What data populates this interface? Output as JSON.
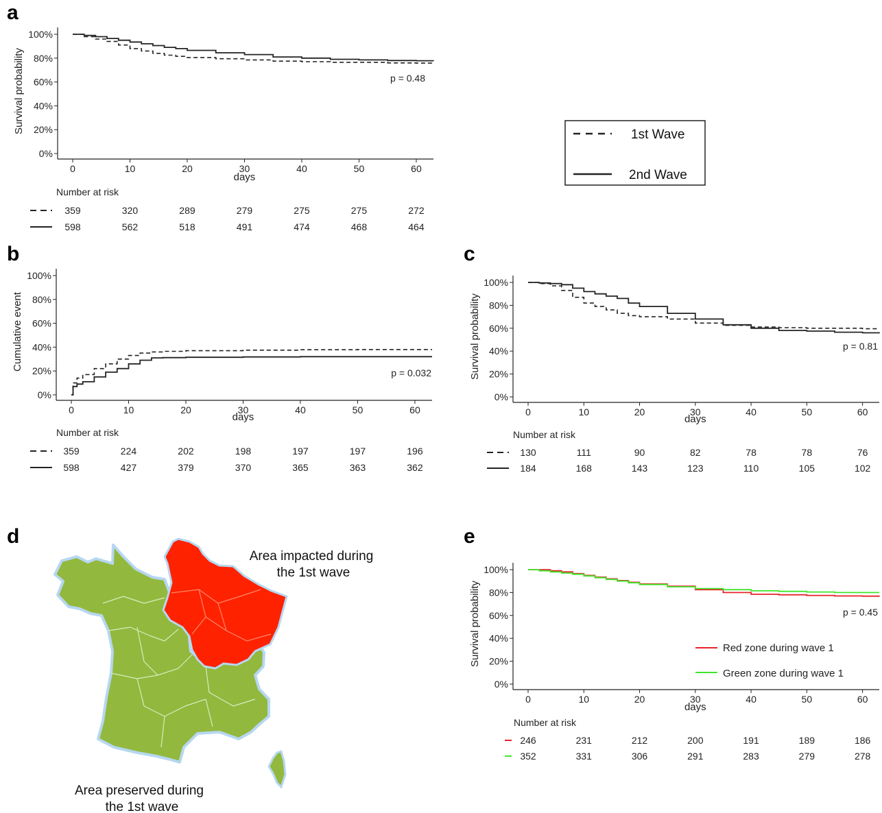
{
  "panels": {
    "a": "a",
    "b": "b",
    "c": "c",
    "d": "d",
    "e": "e"
  },
  "legend": {
    "wave1": "1st Wave",
    "wave2": "2nd Wave"
  },
  "map": {
    "label_impacted_line1": "Area impacted during",
    "label_impacted_line2": "the 1st wave",
    "label_preserved_line1": "Area preserved during",
    "label_preserved_line2": "the 1st wave",
    "colors": {
      "impacted": "#ff2200",
      "preserved": "#93b83e"
    }
  },
  "chart_data": [
    {
      "panel": "a",
      "type": "line",
      "xlabel": "days",
      "ylabel": "Survival probability",
      "xticks": [
        "0",
        "10",
        "20",
        "30",
        "40",
        "50",
        "60"
      ],
      "yticks": [
        "0%",
        "20%",
        "40%",
        "60%",
        "80%",
        "100%"
      ],
      "xlim": [
        0,
        63
      ],
      "ylim": [
        0,
        1
      ],
      "pvalue": "p = 0.48",
      "risk_title": "Number at risk",
      "series": [
        {
          "name": "1st Wave",
          "style": "dashed",
          "color": "#222222",
          "x": [
            0,
            2,
            4,
            6,
            8,
            10,
            12,
            14,
            16,
            18,
            20,
            25,
            30,
            35,
            40,
            45,
            50,
            55,
            60,
            63
          ],
          "y": [
            1.0,
            0.98,
            0.96,
            0.94,
            0.91,
            0.88,
            0.86,
            0.84,
            0.825,
            0.815,
            0.805,
            0.795,
            0.785,
            0.775,
            0.77,
            0.765,
            0.765,
            0.76,
            0.758,
            0.757
          ],
          "risk": [
            "359",
            "320",
            "289",
            "279",
            "275",
            "275",
            "272"
          ]
        },
        {
          "name": "2nd Wave",
          "style": "solid",
          "color": "#222222",
          "x": [
            0,
            2,
            4,
            6,
            8,
            10,
            12,
            14,
            16,
            18,
            20,
            25,
            30,
            35,
            40,
            45,
            50,
            55,
            60,
            63
          ],
          "y": [
            1.0,
            0.99,
            0.98,
            0.965,
            0.95,
            0.935,
            0.92,
            0.905,
            0.89,
            0.88,
            0.865,
            0.845,
            0.83,
            0.81,
            0.8,
            0.79,
            0.785,
            0.78,
            0.778,
            0.777
          ],
          "risk": [
            "598",
            "562",
            "518",
            "491",
            "474",
            "468",
            "464"
          ]
        }
      ]
    },
    {
      "panel": "b",
      "type": "line",
      "xlabel": "days",
      "ylabel": "Cumulative event",
      "xticks": [
        "0",
        "10",
        "20",
        "30",
        "40",
        "50",
        "60"
      ],
      "yticks": [
        "0%",
        "20%",
        "40%",
        "60%",
        "80%",
        "100%"
      ],
      "xlim": [
        0,
        63
      ],
      "ylim": [
        0,
        1
      ],
      "pvalue": "p = 0.032",
      "risk_title": "Number at risk",
      "series": [
        {
          "name": "1st Wave",
          "style": "dashed",
          "color": "#222222",
          "x": [
            0,
            0.3,
            1,
            2,
            4,
            6,
            8,
            10,
            12,
            14,
            16,
            20,
            30,
            40,
            50,
            60,
            63
          ],
          "y": [
            0,
            0.1,
            0.14,
            0.17,
            0.22,
            0.26,
            0.3,
            0.33,
            0.35,
            0.36,
            0.365,
            0.37,
            0.375,
            0.378,
            0.38,
            0.38,
            0.38
          ],
          "risk": [
            "359",
            "224",
            "202",
            "198",
            "197",
            "197",
            "196"
          ]
        },
        {
          "name": "2nd Wave",
          "style": "solid",
          "color": "#222222",
          "x": [
            0,
            0.3,
            1,
            2,
            4,
            6,
            8,
            10,
            12,
            14,
            16,
            20,
            30,
            40,
            50,
            60,
            63
          ],
          "y": [
            0,
            0.07,
            0.09,
            0.11,
            0.15,
            0.19,
            0.22,
            0.26,
            0.29,
            0.31,
            0.312,
            0.315,
            0.318,
            0.32,
            0.32,
            0.32,
            0.32
          ],
          "risk": [
            "598",
            "427",
            "379",
            "370",
            "365",
            "363",
            "362"
          ]
        }
      ]
    },
    {
      "panel": "c",
      "type": "line",
      "xlabel": "days",
      "ylabel": "Survival probability",
      "xticks": [
        "0",
        "10",
        "20",
        "30",
        "40",
        "50",
        "60"
      ],
      "yticks": [
        "0%",
        "20%",
        "40%",
        "60%",
        "80%",
        "100%"
      ],
      "xlim": [
        0,
        63
      ],
      "ylim": [
        0,
        1
      ],
      "pvalue": "p = 0.81",
      "risk_title": "Number at risk",
      "series": [
        {
          "name": "1st Wave",
          "style": "dashed",
          "color": "#222222",
          "x": [
            0,
            2,
            4,
            6,
            8,
            10,
            12,
            14,
            16,
            18,
            20,
            25,
            30,
            35,
            40,
            45,
            50,
            55,
            60,
            63
          ],
          "y": [
            1.0,
            0.99,
            0.97,
            0.93,
            0.87,
            0.82,
            0.79,
            0.76,
            0.73,
            0.71,
            0.7,
            0.68,
            0.645,
            0.625,
            0.61,
            0.605,
            0.6,
            0.6,
            0.595,
            0.595
          ],
          "risk": [
            "130",
            "111",
            "90",
            "82",
            "78",
            "78",
            "76"
          ]
        },
        {
          "name": "2nd Wave",
          "style": "solid",
          "color": "#222222",
          "x": [
            0,
            2,
            4,
            6,
            8,
            10,
            12,
            14,
            16,
            18,
            20,
            25,
            30,
            35,
            40,
            45,
            50,
            55,
            60,
            63
          ],
          "y": [
            1.0,
            0.995,
            0.99,
            0.98,
            0.95,
            0.92,
            0.9,
            0.88,
            0.86,
            0.82,
            0.79,
            0.73,
            0.68,
            0.63,
            0.6,
            0.58,
            0.575,
            0.565,
            0.56,
            0.555
          ],
          "risk": [
            "184",
            "168",
            "143",
            "123",
            "110",
            "105",
            "102"
          ]
        }
      ]
    },
    {
      "panel": "e",
      "type": "line",
      "xlabel": "days",
      "ylabel": "Survival probability",
      "xticks": [
        "0",
        "10",
        "20",
        "30",
        "40",
        "50",
        "60"
      ],
      "yticks": [
        "0%",
        "20%",
        "40%",
        "60%",
        "80%",
        "100%"
      ],
      "xlim": [
        0,
        63
      ],
      "ylim": [
        0,
        1
      ],
      "pvalue": "p = 0.45",
      "risk_title": "Number at risk",
      "series": [
        {
          "name": "Red zone during wave 1",
          "style": "solid",
          "color": "#e8202a",
          "x": [
            0,
            2,
            4,
            6,
            8,
            10,
            12,
            14,
            16,
            18,
            20,
            25,
            30,
            35,
            40,
            45,
            50,
            55,
            60,
            63
          ],
          "y": [
            1.0,
            1.0,
            0.99,
            0.98,
            0.965,
            0.95,
            0.935,
            0.92,
            0.905,
            0.89,
            0.875,
            0.855,
            0.825,
            0.8,
            0.785,
            0.78,
            0.775,
            0.77,
            0.768,
            0.765
          ],
          "risk": [
            "246",
            "231",
            "212",
            "200",
            "191",
            "189",
            "186"
          ]
        },
        {
          "name": "Green zone during wave 1",
          "style": "solid",
          "color": "#3fe62a",
          "x": [
            0,
            2,
            4,
            6,
            8,
            10,
            12,
            14,
            16,
            18,
            20,
            25,
            30,
            35,
            40,
            45,
            50,
            55,
            60,
            63
          ],
          "y": [
            1.0,
            0.99,
            0.98,
            0.97,
            0.96,
            0.945,
            0.93,
            0.915,
            0.9,
            0.885,
            0.87,
            0.85,
            0.835,
            0.825,
            0.815,
            0.81,
            0.805,
            0.8,
            0.8,
            0.8
          ],
          "risk": [
            "352",
            "331",
            "306",
            "291",
            "283",
            "279",
            "278"
          ]
        }
      ]
    }
  ]
}
